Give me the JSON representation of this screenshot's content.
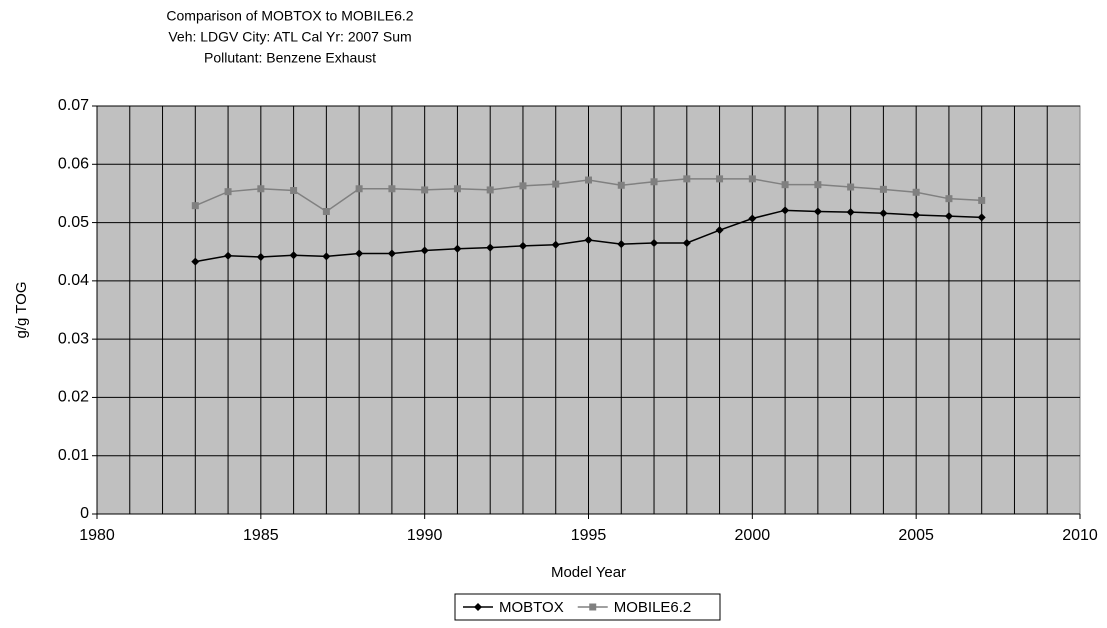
{
  "chart_data": {
    "type": "line",
    "title_lines": [
      "Comparison of MOBTOX to MOBILE6.2",
      "Veh: LDGV   City: ATL   Cal Yr: 2007 Sum",
      "Pollutant: Benzene Exhaust"
    ],
    "x_label": "Model Year",
    "y_label": "g/g TOG",
    "x": [
      1983,
      1984,
      1985,
      1986,
      1987,
      1988,
      1989,
      1990,
      1991,
      1992,
      1993,
      1994,
      1995,
      1996,
      1997,
      1998,
      1999,
      2000,
      2001,
      2002,
      2003,
      2004,
      2005,
      2006,
      2007
    ],
    "series": [
      {
        "name": "MOBTOX",
        "color": "#000000",
        "marker": "diamond",
        "values": [
          0.0433,
          0.0443,
          0.0441,
          0.0444,
          0.0442,
          0.0447,
          0.0447,
          0.0452,
          0.0455,
          0.0457,
          0.046,
          0.0462,
          0.047,
          0.0463,
          0.0465,
          0.0465,
          0.0487,
          0.0507,
          0.0521,
          0.0519,
          0.0518,
          0.0516,
          0.0513,
          0.0511,
          0.0509
        ]
      },
      {
        "name": "MOBILE6.2",
        "color": "#808080",
        "marker": "square",
        "values": [
          0.0529,
          0.0553,
          0.0558,
          0.0555,
          0.0519,
          0.0558,
          0.0558,
          0.0556,
          0.0558,
          0.0556,
          0.0563,
          0.0566,
          0.0573,
          0.0564,
          0.057,
          0.0575,
          0.0575,
          0.0575,
          0.0565,
          0.0565,
          0.0561,
          0.0557,
          0.0552,
          0.0541,
          0.0538
        ]
      }
    ],
    "xlim": [
      1980,
      2010
    ],
    "xticks": [
      1980,
      1985,
      1990,
      1995,
      2000,
      2005,
      2010
    ],
    "ylim": [
      0,
      0.07
    ],
    "yticks": [
      0,
      0.01,
      0.02,
      0.03,
      0.04,
      0.05,
      0.06,
      0.07
    ],
    "x_minor_step": 1,
    "grid": true,
    "plot_background": "#c0c0c0",
    "legend": "bottom"
  }
}
